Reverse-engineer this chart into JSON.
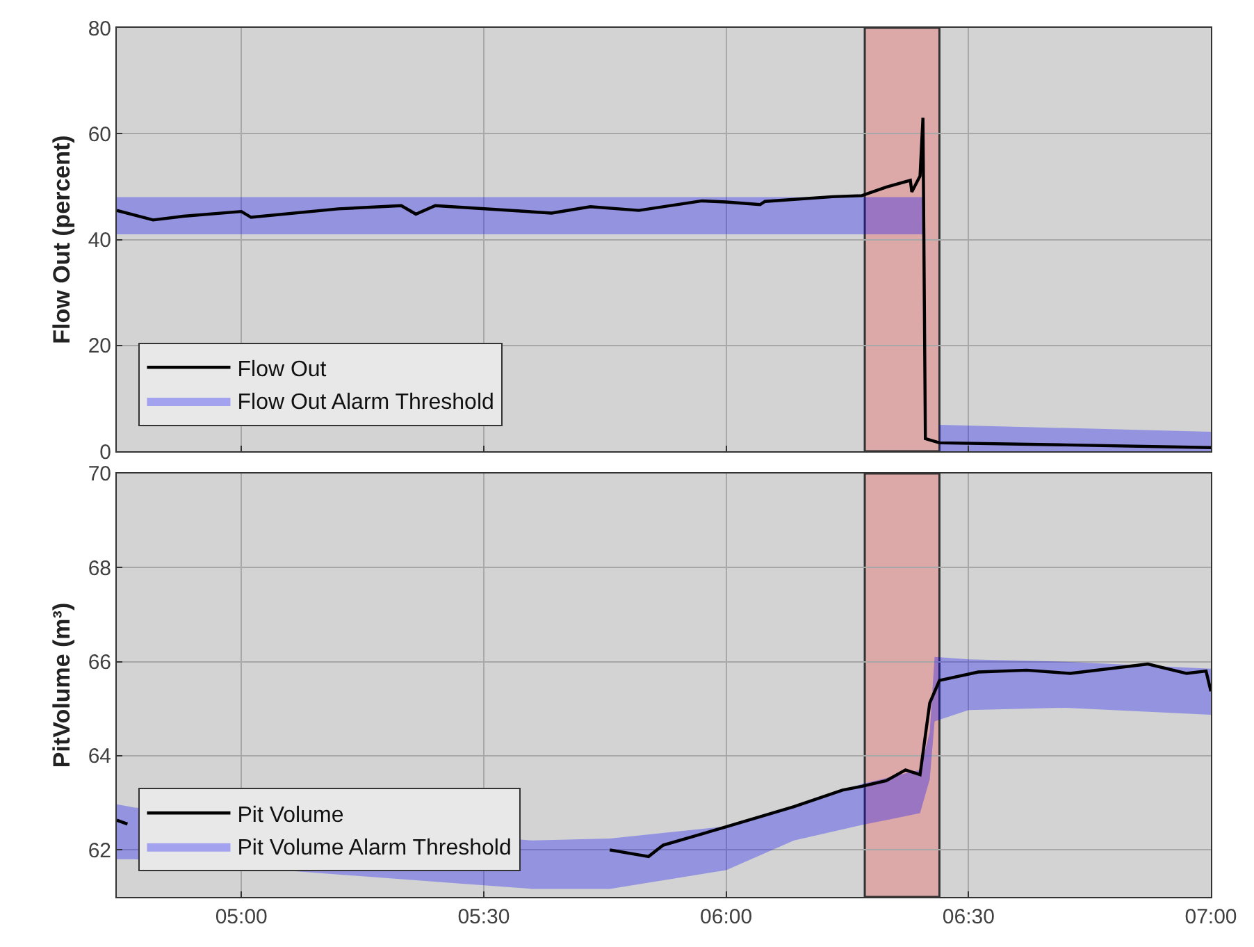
{
  "chart_data": [
    {
      "type": "line",
      "ylabel": "Flow Out (percent)",
      "xlim": [
        4.743,
        7.0
      ],
      "ylim": [
        0,
        80
      ],
      "yticks": [
        0,
        20,
        40,
        60,
        80
      ],
      "xticks": [
        {
          "value": 5.0,
          "label": null
        },
        {
          "value": 5.5,
          "label": null
        },
        {
          "value": 6.0,
          "label": null
        },
        {
          "value": 6.5,
          "label": null
        },
        {
          "value": 7.0,
          "label": null
        }
      ],
      "tick_labels": "y",
      "grid": true,
      "legend": "bottom left",
      "bands": [
        {
          "axis": "x",
          "from": 6.286,
          "to": 6.44,
          "color": "#dca8a8"
        }
      ],
      "series": [
        {
          "name": "Flow Out",
          "color": "#000000",
          "x": [
            4.743,
            4.818,
            4.88,
            5.0,
            5.02,
            5.2,
            5.33,
            5.36,
            5.4,
            5.64,
            5.72,
            5.82,
            5.95,
            6.0,
            6.07,
            6.08,
            6.22,
            6.28,
            6.33,
            6.38,
            6.383,
            6.4,
            6.406,
            6.411,
            6.44,
            6.7,
            7.0
          ],
          "values": [
            45.5,
            43.7,
            44.4,
            45.3,
            44.2,
            45.8,
            46.4,
            44.8,
            46.4,
            45.0,
            46.2,
            45.5,
            47.3,
            47.1,
            46.6,
            47.2,
            48.1,
            48.3,
            49.9,
            51.2,
            49,
            52,
            63,
            2.4,
            1.6,
            1.2,
            0.7
          ]
        },
        {
          "name": "Flow Out Alarm Threshold",
          "type": "area",
          "color": "#0000ff",
          "x": [
            4.743,
            5.5,
            6.0,
            6.41,
            6.42,
            6.44,
            7.0
          ],
          "values": [
            null,
            null,
            null,
            null,
            null,
            null,
            null
          ],
          "upper": [
            48,
            48,
            48,
            48,
            null,
            5,
            3.7
          ],
          "lower": [
            41,
            41,
            41,
            41,
            null,
            0,
            0
          ]
        }
      ]
    },
    {
      "type": "line",
      "ylabel": "PitVolume (m³)",
      "xlim": [
        4.743,
        7.0
      ],
      "ylim": [
        61,
        70
      ],
      "yticks": [
        62,
        64,
        66,
        68,
        70
      ],
      "xticks": [
        {
          "value": 5.0,
          "label": "05:00"
        },
        {
          "value": 5.5,
          "label": "05:30"
        },
        {
          "value": 6.0,
          "label": "06:00"
        },
        {
          "value": 6.5,
          "label": "06:30"
        },
        {
          "value": 7.0,
          "label": "07:00"
        }
      ],
      "grid": true,
      "legend": "bottom left",
      "bands": [
        {
          "axis": "x",
          "from": 6.286,
          "to": 6.44,
          "color": "#dca8a8"
        }
      ],
      "series": [
        {
          "name": "Pit Volume",
          "color": "#000000",
          "x": [
            4.743,
            4.765,
            5.3,
            5.76,
            5.84,
            5.87,
            6.0,
            6.14,
            6.24,
            6.28,
            6.33,
            6.37,
            6.4,
            6.42,
            6.44,
            6.52,
            6.62,
            6.71,
            6.87,
            6.95,
            6.99,
            7.0
          ],
          "values": [
            62.63,
            62.55,
            null,
            62.0,
            61.86,
            62.1,
            62.49,
            62.92,
            63.27,
            63.35,
            63.47,
            63.7,
            63.6,
            65.12,
            65.6,
            65.78,
            65.82,
            65.75,
            65.95,
            65.75,
            65.8,
            65.37
          ]
        },
        {
          "name": "Pit Volume Alarm Threshold",
          "type": "area",
          "color": "#0000ff",
          "x": [
            4.743,
            4.78,
            5.6,
            5.76,
            6.0,
            6.14,
            6.28,
            6.4,
            6.42,
            6.43,
            6.5,
            6.7,
            7.0
          ],
          "values": [
            null,
            null,
            null,
            null,
            null,
            null,
            null,
            null,
            null,
            null,
            null,
            null,
            null
          ],
          "upper": [
            62.97,
            62.9,
            62.2,
            62.24,
            62.5,
            62.9,
            63.4,
            63.7,
            64.5,
            66.1,
            66.05,
            66.0,
            65.85
          ],
          "lower": [
            61.8,
            61.8,
            61.17,
            61.17,
            61.57,
            62.2,
            62.53,
            62.78,
            63.5,
            64.73,
            64.97,
            65.02,
            64.87
          ]
        }
      ]
    }
  ]
}
